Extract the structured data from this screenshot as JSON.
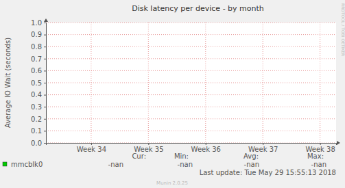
{
  "chart_data": {
    "type": "line",
    "title": "Disk latency per device - by month",
    "y_label": "Average IO Wait (seconds)",
    "x": [
      34,
      35,
      36,
      37,
      38
    ],
    "xlim": [
      33.21,
      38.28
    ],
    "xticks": [
      {
        "value": 34,
        "label": "Week 34"
      },
      {
        "value": 35,
        "label": "Week 35"
      },
      {
        "value": 36,
        "label": "Week 36"
      },
      {
        "value": 37,
        "label": "Week 37"
      },
      {
        "value": 38,
        "label": "Week 38"
      }
    ],
    "ylim": [
      0,
      1
    ],
    "yticks": [
      {
        "value": 0,
        "label": "0.0"
      },
      {
        "value": 0.1,
        "label": "0.1"
      },
      {
        "value": 0.2,
        "label": "0.2"
      },
      {
        "value": 0.3,
        "label": "0.3"
      },
      {
        "value": 0.4,
        "label": "0.4"
      },
      {
        "value": 0.5,
        "label": "0.5"
      },
      {
        "value": 0.6,
        "label": "0.6"
      },
      {
        "value": 0.7,
        "label": "0.7"
      },
      {
        "value": 0.8,
        "label": "0.8"
      },
      {
        "value": 0.9,
        "label": "0.9"
      },
      {
        "value": 1,
        "label": "1.0"
      }
    ],
    "grid": true,
    "legend": "bottom",
    "series": [
      {
        "name": "mmcblk0",
        "color": "#00cc00",
        "values": [
          null,
          null,
          null,
          null,
          null
        ],
        "stats": [
          {
            "label": "Cur:",
            "value": "-nan"
          },
          {
            "label": "Min:",
            "value": "-nan"
          },
          {
            "label": "Avg:",
            "value": "-nan"
          },
          {
            "label": "Max:",
            "value": "-nan"
          }
        ]
      }
    ],
    "footer": "Last update: Tue May 29 15:55:13 2018",
    "credit": "Munin 2.0.25",
    "watermark": "RRDTOOL / TOBI OETIKER"
  }
}
